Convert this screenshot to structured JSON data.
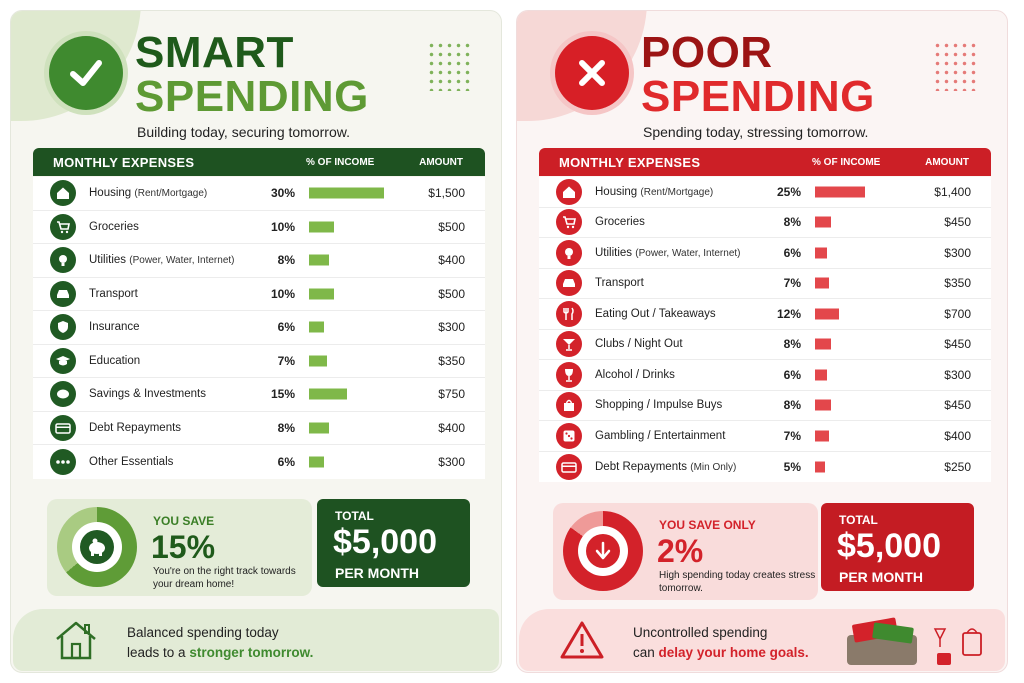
{
  "smart": {
    "title_line1": "SMART",
    "title_line2": "SPENDING",
    "subtitle": "Building today, securing tomorrow.",
    "header": {
      "category": "MONTHLY EXPENSES",
      "percent": "% OF INCOME",
      "amount": "AMOUNT"
    },
    "rows": [
      {
        "name": "Housing",
        "detail": "(Rent/Mortgage)",
        "pct": "30%",
        "value": 30,
        "amount": "$1,500",
        "icon": "house-icon"
      },
      {
        "name": "Groceries",
        "detail": "",
        "pct": "10%",
        "value": 10,
        "amount": "$500",
        "icon": "cart-icon"
      },
      {
        "name": "Utilities",
        "detail": "(Power, Water, Internet)",
        "pct": "8%",
        "value": 8,
        "amount": "$400",
        "icon": "lightbulb-icon"
      },
      {
        "name": "Transport",
        "detail": "",
        "pct": "10%",
        "value": 10,
        "amount": "$500",
        "icon": "car-icon"
      },
      {
        "name": "Insurance",
        "detail": "",
        "pct": "6%",
        "value": 6,
        "amount": "$300",
        "icon": "shield-icon"
      },
      {
        "name": "Education",
        "detail": "",
        "pct": "7%",
        "value": 7,
        "amount": "$350",
        "icon": "graduation-cap-icon"
      },
      {
        "name": "Savings & Investments",
        "detail": "",
        "pct": "15%",
        "value": 15,
        "amount": "$750",
        "icon": "piggy-bank-icon"
      },
      {
        "name": "Debt Repayments",
        "detail": "",
        "pct": "8%",
        "value": 8,
        "amount": "$400",
        "icon": "credit-card-icon"
      },
      {
        "name": "Other Essentials",
        "detail": "",
        "pct": "6%",
        "value": 6,
        "amount": "$300",
        "icon": "more-icon"
      }
    ],
    "save_label": "YOU SAVE",
    "save_pct": "15%",
    "save_note": "You're on the right track towards your dream home!",
    "total_label": "TOTAL",
    "total_value": "$5,000",
    "total_sub": "PER MONTH",
    "footer_line1": "Balanced spending today",
    "footer_line2a": "leads to a",
    "footer_line2b": "stronger tomorrow.",
    "colors": {
      "primary": "#1e5221",
      "accent": "#7fb849"
    }
  },
  "poor": {
    "title_line1": "POOR",
    "title_line2": "SPENDING",
    "subtitle": "Spending today, stressing tomorrow.",
    "header": {
      "category": "MONTHLY EXPENSES",
      "percent": "% OF INCOME",
      "amount": "AMOUNT"
    },
    "rows": [
      {
        "name": "Housing",
        "detail": "(Rent/Mortgage)",
        "pct": "25%",
        "value": 25,
        "amount": "$1,400",
        "icon": "house-icon"
      },
      {
        "name": "Groceries",
        "detail": "",
        "pct": "8%",
        "value": 8,
        "amount": "$450",
        "icon": "cart-icon"
      },
      {
        "name": "Utilities",
        "detail": "(Power, Water, Internet)",
        "pct": "6%",
        "value": 6,
        "amount": "$300",
        "icon": "lightbulb-icon"
      },
      {
        "name": "Transport",
        "detail": "",
        "pct": "7%",
        "value": 7,
        "amount": "$350",
        "icon": "car-icon"
      },
      {
        "name": "Eating Out / Takeaways",
        "detail": "",
        "pct": "12%",
        "value": 12,
        "amount": "$700",
        "icon": "cutlery-icon"
      },
      {
        "name": "Clubs / Night Out",
        "detail": "",
        "pct": "8%",
        "value": 8,
        "amount": "$450",
        "icon": "cocktail-icon"
      },
      {
        "name": "Alcohol / Drinks",
        "detail": "",
        "pct": "6%",
        "value": 6,
        "amount": "$300",
        "icon": "wine-glass-icon"
      },
      {
        "name": "Shopping / Impulse Buys",
        "detail": "",
        "pct": "8%",
        "value": 8,
        "amount": "$450",
        "icon": "shopping-bag-icon"
      },
      {
        "name": "Gambling / Entertainment",
        "detail": "",
        "pct": "7%",
        "value": 7,
        "amount": "$400",
        "icon": "dice-icon"
      },
      {
        "name": "Debt Repayments",
        "detail": "(Min Only)",
        "pct": "5%",
        "value": 5,
        "amount": "$250",
        "icon": "credit-card-icon"
      }
    ],
    "save_label": "YOU SAVE ONLY",
    "save_pct": "2%",
    "save_note": "High spending today creates stress tomorrow.",
    "total_label": "TOTAL",
    "total_value": "$5,000",
    "total_sub": "PER MONTH",
    "footer_line1": "Uncontrolled spending",
    "footer_line2a": "can",
    "footer_line2b": "delay your home goals.",
    "colors": {
      "primary": "#cc1f26",
      "accent": "#e3474b"
    }
  }
}
